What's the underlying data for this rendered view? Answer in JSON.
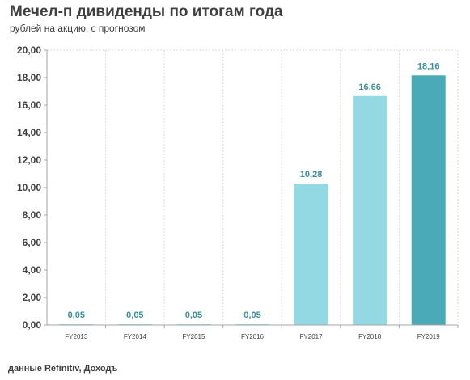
{
  "title": "Мечел-п дивиденды по итогам года",
  "subtitle": "рублей на акцию,  с прогнозом",
  "source": "данные Refinitiv, Доходъ",
  "colors": {
    "bar_light": "#92d9e3",
    "bar_dark": "#4aabb8",
    "label": "#3a8f9a",
    "grid": "#d9d9d9",
    "axis": "#a6a6a6"
  },
  "chart_data": {
    "type": "bar",
    "categories": [
      "FY2013",
      "FY2014",
      "FY2015",
      "FY2016",
      "FY2017",
      "FY2018",
      "FY2019"
    ],
    "values": [
      0.05,
      0.05,
      0.05,
      0.05,
      10.28,
      16.66,
      18.16
    ],
    "value_labels": [
      "0,05",
      "0,05",
      "0,05",
      "0,05",
      "10,28",
      "16,66",
      "18,16"
    ],
    "highlight": [
      false,
      false,
      false,
      false,
      false,
      false,
      true
    ],
    "ylim": [
      0,
      20
    ],
    "yticks": [
      0,
      2,
      4,
      6,
      8,
      10,
      12,
      14,
      16,
      18,
      20
    ],
    "ytick_labels": [
      "0,00",
      "2,00",
      "4,00",
      "6,00",
      "8,00",
      "10,00",
      "12,00",
      "14,00",
      "16,00",
      "18,00",
      "20,00"
    ],
    "grid": "vertical-dotted",
    "legend": "none"
  }
}
